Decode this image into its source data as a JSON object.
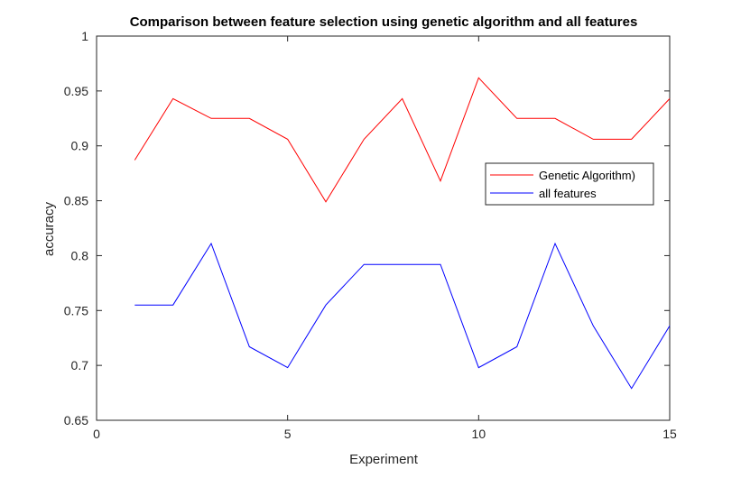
{
  "chart_data": {
    "type": "line",
    "title": "Comparison between feature selection using genetic algorithm and all features",
    "xlabel": "Experiment",
    "ylabel": "accuracy",
    "xlim": [
      0,
      15
    ],
    "ylim": [
      0.65,
      1
    ],
    "xticks": [
      0,
      5,
      10,
      15
    ],
    "yticks": [
      0.65,
      0.7,
      0.75,
      0.8,
      0.85,
      0.9,
      0.95,
      1
    ],
    "ytick_labels": [
      "0.65",
      "0.7",
      "0.75",
      "0.8",
      "0.85",
      "0.9",
      "0.95",
      "1"
    ],
    "grid": false,
    "legend_position": "right",
    "x": [
      1,
      2,
      3,
      4,
      5,
      6,
      7,
      8,
      9,
      10,
      11,
      12,
      13,
      14,
      15
    ],
    "series": [
      {
        "name": "Genetic Algorithm)",
        "color": "#ff0000",
        "values": [
          0.887,
          0.943,
          0.925,
          0.925,
          0.906,
          0.849,
          0.906,
          0.943,
          0.868,
          0.962,
          0.925,
          0.925,
          0.906,
          0.906,
          0.943
        ]
      },
      {
        "name": "all features",
        "color": "#0000ff",
        "values": [
          0.755,
          0.755,
          0.811,
          0.717,
          0.698,
          0.755,
          0.792,
          0.792,
          0.792,
          0.698,
          0.717,
          0.811,
          0.736,
          0.679,
          0.736
        ]
      }
    ]
  }
}
